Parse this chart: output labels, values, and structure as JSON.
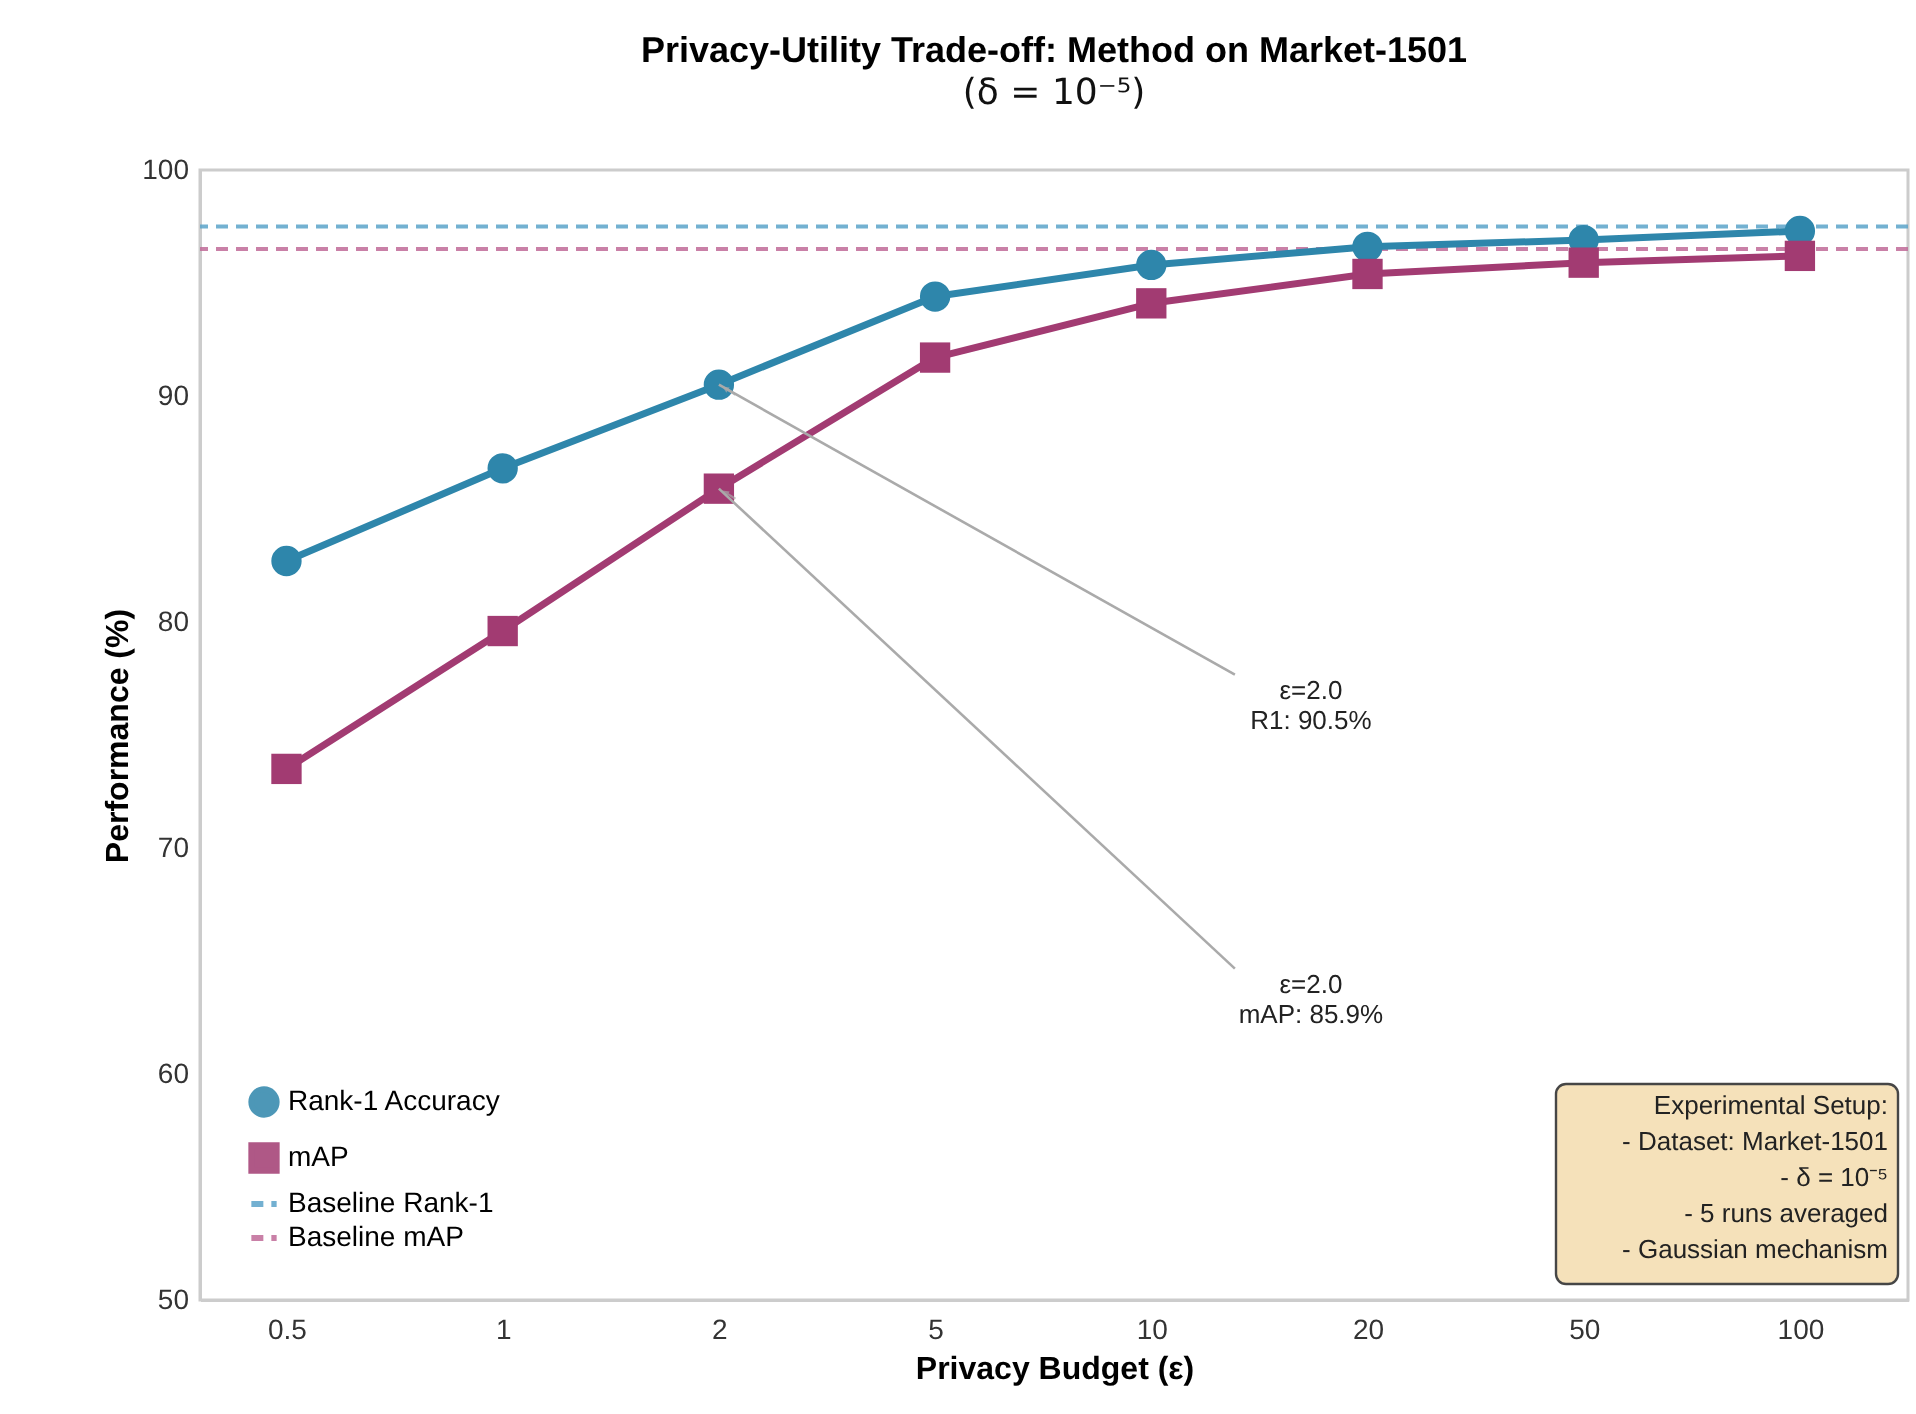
{
  "chart_data": {
    "type": "line",
    "title": "Privacy-Utility Trade-off: Method on Market-1501",
    "subtitle": "(δ = 10⁻⁵)",
    "xlabel": "Privacy Budget (ε)",
    "ylabel": "Performance (%)",
    "categories": [
      "0.5",
      "1",
      "2",
      "5",
      "10",
      "20",
      "50",
      "100"
    ],
    "series": [
      {
        "name": "Rank-1 Accuracy",
        "color": "#2e86ab",
        "marker": "circle",
        "values": [
          82.7,
          86.8,
          90.5,
          94.4,
          95.8,
          96.6,
          96.9,
          97.3
        ]
      },
      {
        "name": "mAP",
        "color": "#a23b72",
        "marker": "square",
        "values": [
          73.5,
          79.6,
          85.9,
          91.7,
          94.1,
          95.4,
          95.9,
          96.2
        ]
      }
    ],
    "ref_lines": [
      {
        "axis": "y",
        "value": 97.5,
        "label": "Baseline Rank-1",
        "color": "#5ba3c9",
        "line_style": "dashed"
      },
      {
        "axis": "y",
        "value": 96.5,
        "label": "Baseline mAP",
        "color": "#c06a98",
        "line_style": "dashed"
      }
    ],
    "ylim": [
      50,
      100
    ],
    "yticks": [
      50,
      60,
      70,
      80,
      90,
      100
    ],
    "grid": false,
    "legend": "bottom left",
    "line_style": "solid",
    "annotations": [
      {
        "text": "ε=2.0\nR1: 90.5%",
        "x": "2",
        "y": 90.5
      },
      {
        "text": "ε=2.0\nmAP: 85.9%",
        "x": "2",
        "y": 85.9
      },
      "Experimental Setup:\n- Dataset: Market-1501\n- δ = 10⁻⁵\n- 5 runs averaged\n- Gaussian mechanism"
    ]
  }
}
